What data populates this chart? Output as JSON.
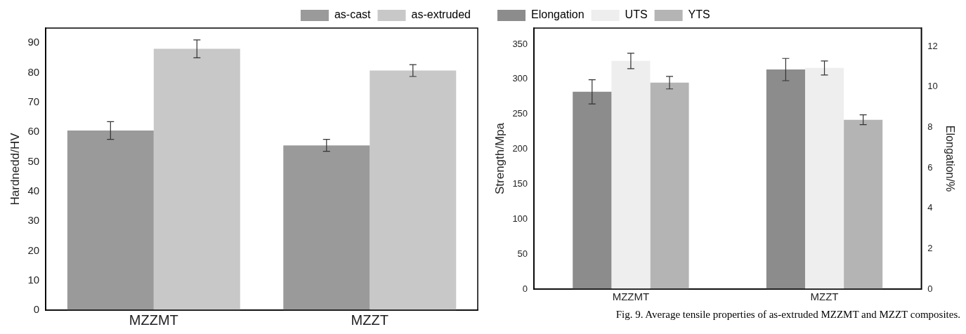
{
  "chart_data": [
    {
      "type": "bar",
      "ylabel": "Hardnedd/HV",
      "categories": [
        "MZZMT",
        "MZZT"
      ],
      "ylim": [
        0,
        95
      ],
      "yticks": [
        0,
        10,
        20,
        30,
        40,
        50,
        60,
        70,
        80,
        90
      ],
      "grid": false,
      "legend": "top right",
      "series": [
        {
          "name": "as-cast",
          "color": "#9a9a9a",
          "values": [
            60.5,
            55.5
          ],
          "errors": [
            3,
            2
          ]
        },
        {
          "name": "as-extruded",
          "color": "#c8c8c8",
          "values": [
            88,
            80.7
          ],
          "errors": [
            3,
            2
          ]
        }
      ]
    },
    {
      "type": "bar",
      "ylabel": "Strength/Mpa",
      "y2label": "Elongation/%",
      "categories": [
        "MZZMT",
        "MZZT"
      ],
      "ylim": [
        0,
        373
      ],
      "yticks": [
        0,
        50,
        100,
        150,
        200,
        250,
        300,
        350
      ],
      "y2lim": [
        0,
        12.9
      ],
      "y2ticks": [
        0,
        2,
        4,
        6,
        8,
        10,
        12
      ],
      "grid": false,
      "legend": "top left",
      "annotations": [
        "Fig. 9. Average tensile properties of as-extruded MZZMT and MZZT composites."
      ],
      "series": [
        {
          "name": "Elongation",
          "color": "#8c8c8c",
          "axis": "y2",
          "values": [
            9.75,
            10.85
          ],
          "errors": [
            0.6,
            0.55
          ]
        },
        {
          "name": "UTS",
          "color": "#eeeeee",
          "values": [
            326,
            316
          ],
          "errors": [
            11,
            10
          ]
        },
        {
          "name": "YTS",
          "color": "#b4b4b4",
          "values": [
            295,
            242
          ],
          "errors": [
            9,
            7
          ]
        }
      ]
    }
  ]
}
